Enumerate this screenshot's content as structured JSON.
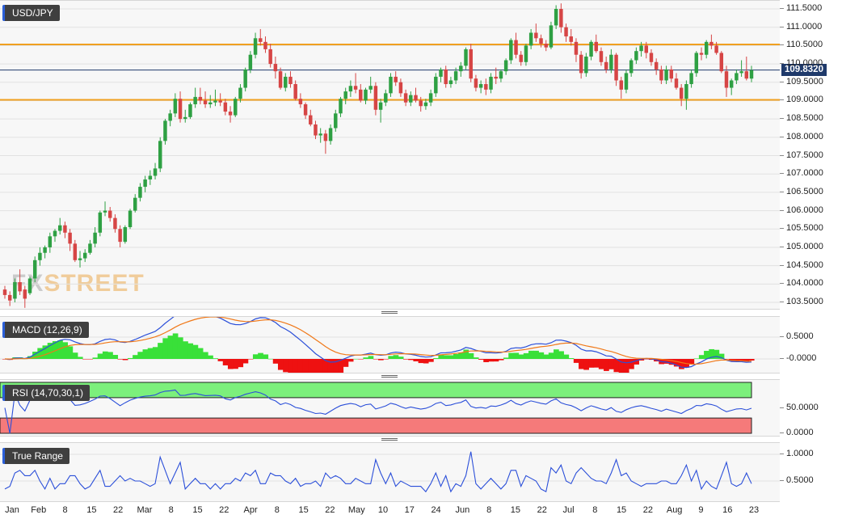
{
  "main_chart": {
    "symbol_label": "USD/JPY",
    "current_price_label": "109.8320",
    "price_ticks": [
      "111.5000",
      "111.0000",
      "110.5000",
      "110.0000",
      "109.5000",
      "109.0000",
      "108.5000",
      "108.0000",
      "107.5000",
      "107.0000",
      "106.5000",
      "106.0000",
      "105.5000",
      "105.0000",
      "104.5000",
      "104.0000",
      "103.5000"
    ],
    "watermark_fx": "FX",
    "watermark_street": "STREET",
    "colors": {
      "up": "#2ea043",
      "down": "#d64545",
      "hline": "#f0a020",
      "price_line": "#1f3a6b",
      "background": "#f7f7f7"
    }
  },
  "macd_panel": {
    "label": "MACD (12,26,9)",
    "ticks": [
      "0.5000",
      "-0.0000"
    ]
  },
  "rsi_panel": {
    "label": "RSI (14,70,30,1)",
    "ticks": [
      "50.0000",
      "0.0000"
    ]
  },
  "tr_panel": {
    "label": "True Range",
    "ticks": [
      "1.0000",
      "0.5000"
    ]
  },
  "date_labels": [
    "Jan",
    "Feb",
    "8",
    "15",
    "22",
    "Mar",
    "8",
    "15",
    "22",
    "Apr",
    "8",
    "15",
    "22",
    "May",
    "10",
    "17",
    "24",
    "Jun",
    "8",
    "15",
    "22",
    "Jul",
    "8",
    "15",
    "22",
    "Aug",
    "9",
    "16",
    "23"
  ],
  "chart_data": {
    "type": "candlestick",
    "symbol": "USD/JPY",
    "last_price": 109.832,
    "ylim": [
      103.3,
      111.65
    ],
    "horizontal_lines": [
      110.53,
      109.02
    ],
    "candles": [
      [
        103.85,
        103.95,
        103.6,
        103.7
      ],
      [
        103.7,
        103.8,
        103.4,
        103.55
      ],
      [
        103.6,
        104.15,
        103.5,
        104.05
      ],
      [
        104.05,
        104.4,
        103.7,
        103.8
      ],
      [
        103.85,
        103.95,
        103.35,
        103.6
      ],
      [
        103.75,
        104.2,
        103.7,
        104.15
      ],
      [
        104.15,
        104.75,
        104.05,
        104.65
      ],
      [
        104.65,
        105.0,
        104.5,
        104.85
      ],
      [
        104.85,
        105.05,
        104.7,
        105.0
      ],
      [
        105.0,
        105.4,
        104.85,
        105.3
      ],
      [
        105.3,
        105.5,
        105.15,
        105.45
      ],
      [
        105.45,
        105.8,
        105.35,
        105.6
      ],
      [
        105.6,
        105.7,
        105.25,
        105.4
      ],
      [
        105.4,
        105.5,
        104.9,
        105.1
      ],
      [
        105.1,
        105.2,
        104.6,
        104.65
      ],
      [
        104.65,
        104.9,
        104.45,
        104.7
      ],
      [
        104.7,
        104.95,
        104.6,
        104.85
      ],
      [
        104.85,
        105.2,
        104.8,
        105.1
      ],
      [
        105.1,
        105.55,
        105.0,
        105.4
      ],
      [
        105.4,
        106.0,
        105.3,
        105.95
      ],
      [
        105.95,
        106.25,
        105.85,
        106.0
      ],
      [
        106.0,
        106.1,
        105.7,
        105.8
      ],
      [
        105.8,
        105.9,
        105.4,
        105.5
      ],
      [
        105.5,
        105.6,
        105.0,
        105.15
      ],
      [
        105.15,
        105.6,
        105.1,
        105.55
      ],
      [
        105.55,
        106.05,
        105.5,
        106.0
      ],
      [
        106.0,
        106.45,
        105.95,
        106.35
      ],
      [
        106.35,
        106.75,
        106.25,
        106.65
      ],
      [
        106.65,
        106.95,
        106.5,
        106.85
      ],
      [
        106.85,
        107.1,
        106.7,
        106.95
      ],
      [
        106.95,
        107.3,
        106.85,
        107.15
      ],
      [
        107.15,
        108.0,
        107.05,
        107.9
      ],
      [
        107.9,
        108.5,
        107.8,
        108.45
      ],
      [
        108.45,
        108.75,
        108.3,
        108.65
      ],
      [
        108.65,
        109.2,
        108.55,
        109.05
      ],
      [
        109.05,
        109.25,
        108.4,
        108.5
      ],
      [
        108.5,
        108.75,
        108.4,
        108.55
      ],
      [
        108.55,
        108.95,
        108.5,
        108.9
      ],
      [
        108.9,
        109.35,
        108.8,
        109.1
      ],
      [
        109.1,
        109.35,
        108.9,
        109.0
      ],
      [
        109.0,
        109.25,
        108.8,
        108.9
      ],
      [
        108.9,
        109.15,
        108.8,
        108.95
      ],
      [
        108.95,
        109.3,
        108.85,
        109.0
      ],
      [
        109.0,
        109.2,
        108.85,
        108.95
      ],
      [
        108.95,
        109.05,
        108.6,
        108.7
      ],
      [
        108.7,
        108.85,
        108.4,
        108.6
      ],
      [
        108.6,
        109.1,
        108.55,
        109.05
      ],
      [
        109.05,
        109.45,
        108.95,
        109.35
      ],
      [
        109.35,
        109.9,
        109.25,
        109.85
      ],
      [
        109.85,
        110.35,
        109.75,
        110.25
      ],
      [
        110.25,
        110.85,
        110.15,
        110.7
      ],
      [
        110.7,
        110.95,
        110.5,
        110.6
      ],
      [
        110.6,
        110.75,
        110.3,
        110.4
      ],
      [
        110.4,
        110.55,
        109.9,
        110.0
      ],
      [
        110.0,
        110.2,
        109.6,
        109.8
      ],
      [
        109.8,
        109.9,
        109.3,
        109.35
      ],
      [
        109.35,
        109.75,
        109.25,
        109.65
      ],
      [
        109.65,
        109.8,
        109.35,
        109.45
      ],
      [
        109.45,
        109.55,
        109.0,
        109.05
      ],
      [
        109.05,
        109.2,
        108.8,
        108.9
      ],
      [
        108.9,
        108.95,
        108.5,
        108.6
      ],
      [
        108.6,
        108.75,
        108.3,
        108.35
      ],
      [
        108.35,
        108.45,
        107.95,
        108.05
      ],
      [
        108.05,
        108.25,
        107.85,
        108.1
      ],
      [
        108.1,
        108.2,
        107.55,
        107.9
      ],
      [
        107.9,
        108.35,
        107.8,
        108.25
      ],
      [
        108.25,
        108.75,
        108.15,
        108.65
      ],
      [
        108.65,
        109.1,
        108.55,
        109.05
      ],
      [
        109.05,
        109.35,
        108.9,
        109.25
      ],
      [
        109.25,
        109.55,
        109.1,
        109.4
      ],
      [
        109.4,
        109.75,
        109.2,
        109.3
      ],
      [
        109.3,
        109.45,
        108.95,
        109.0
      ],
      [
        109.0,
        109.35,
        108.9,
        109.3
      ],
      [
        109.3,
        109.65,
        109.2,
        109.4
      ],
      [
        109.4,
        109.5,
        108.6,
        108.75
      ],
      [
        108.75,
        109.05,
        108.4,
        108.95
      ],
      [
        108.95,
        109.3,
        108.85,
        109.2
      ],
      [
        109.2,
        109.75,
        109.1,
        109.65
      ],
      [
        109.65,
        109.8,
        109.4,
        109.5
      ],
      [
        109.5,
        109.6,
        109.1,
        109.2
      ],
      [
        109.2,
        109.3,
        108.85,
        108.95
      ],
      [
        108.95,
        109.25,
        108.85,
        109.15
      ],
      [
        109.15,
        109.35,
        108.95,
        109.0
      ],
      [
        109.0,
        109.1,
        108.7,
        108.85
      ],
      [
        108.85,
        109.05,
        108.75,
        108.95
      ],
      [
        108.95,
        109.3,
        108.85,
        109.2
      ],
      [
        109.2,
        109.75,
        109.1,
        109.65
      ],
      [
        109.65,
        109.9,
        109.5,
        109.85
      ],
      [
        109.85,
        109.95,
        109.35,
        109.45
      ],
      [
        109.45,
        109.65,
        109.35,
        109.55
      ],
      [
        109.55,
        109.9,
        109.45,
        109.8
      ],
      [
        109.8,
        110.05,
        109.65,
        109.95
      ],
      [
        109.95,
        110.45,
        109.85,
        110.4
      ],
      [
        110.4,
        110.55,
        109.5,
        109.6
      ],
      [
        109.6,
        109.7,
        109.25,
        109.35
      ],
      [
        109.35,
        109.55,
        109.2,
        109.45
      ],
      [
        109.45,
        109.6,
        109.15,
        109.3
      ],
      [
        109.3,
        109.75,
        109.2,
        109.65
      ],
      [
        109.65,
        109.9,
        109.45,
        109.6
      ],
      [
        109.6,
        109.85,
        109.5,
        109.8
      ],
      [
        109.8,
        110.15,
        109.7,
        110.1
      ],
      [
        110.1,
        110.7,
        110.0,
        110.65
      ],
      [
        110.65,
        110.85,
        110.15,
        110.25
      ],
      [
        110.25,
        110.35,
        109.95,
        110.05
      ],
      [
        110.05,
        110.55,
        109.95,
        110.5
      ],
      [
        110.5,
        110.95,
        110.4,
        110.85
      ],
      [
        110.85,
        111.1,
        110.6,
        110.7
      ],
      [
        110.7,
        110.8,
        110.45,
        110.55
      ],
      [
        110.55,
        110.65,
        110.35,
        110.45
      ],
      [
        110.45,
        111.15,
        110.4,
        111.05
      ],
      [
        111.05,
        111.6,
        110.95,
        111.5
      ],
      [
        111.5,
        111.65,
        110.85,
        111.0
      ],
      [
        111.0,
        111.1,
        110.6,
        110.75
      ],
      [
        110.75,
        110.95,
        110.5,
        110.6
      ],
      [
        110.6,
        110.7,
        110.05,
        110.25
      ],
      [
        110.25,
        110.35,
        109.6,
        109.75
      ],
      [
        109.75,
        110.3,
        109.65,
        110.2
      ],
      [
        110.2,
        110.65,
        110.1,
        110.6
      ],
      [
        110.6,
        110.8,
        110.3,
        110.35
      ],
      [
        110.35,
        110.45,
        109.95,
        110.05
      ],
      [
        110.05,
        110.2,
        109.75,
        109.85
      ],
      [
        109.85,
        110.4,
        109.75,
        110.25
      ],
      [
        110.25,
        110.3,
        109.4,
        109.55
      ],
      [
        109.55,
        109.65,
        109.05,
        109.3
      ],
      [
        109.3,
        109.85,
        109.2,
        109.75
      ],
      [
        109.75,
        110.15,
        109.65,
        110.1
      ],
      [
        110.1,
        110.45,
        110.0,
        110.35
      ],
      [
        110.35,
        110.6,
        110.2,
        110.5
      ],
      [
        110.5,
        110.6,
        110.15,
        110.3
      ],
      [
        110.3,
        110.4,
        109.95,
        110.05
      ],
      [
        110.05,
        110.15,
        109.7,
        109.85
      ],
      [
        109.85,
        109.95,
        109.45,
        109.55
      ],
      [
        109.55,
        109.95,
        109.45,
        109.85
      ],
      [
        109.85,
        109.95,
        109.5,
        109.6
      ],
      [
        109.6,
        109.75,
        109.3,
        109.35
      ],
      [
        109.35,
        109.45,
        108.85,
        109.05
      ],
      [
        109.05,
        109.55,
        108.75,
        109.45
      ],
      [
        109.45,
        109.85,
        109.35,
        109.75
      ],
      [
        109.75,
        110.35,
        109.65,
        110.3
      ],
      [
        110.3,
        110.45,
        110.1,
        110.25
      ],
      [
        110.25,
        110.65,
        110.15,
        110.6
      ],
      [
        110.6,
        110.8,
        110.4,
        110.5
      ],
      [
        110.5,
        110.6,
        110.25,
        110.3
      ],
      [
        110.3,
        110.35,
        109.75,
        109.8
      ],
      [
        109.8,
        109.95,
        109.1,
        109.35
      ],
      [
        109.35,
        109.6,
        109.15,
        109.55
      ],
      [
        109.55,
        109.85,
        109.45,
        109.75
      ],
      [
        109.75,
        110.1,
        109.65,
        109.8
      ],
      [
        109.8,
        110.2,
        109.55,
        109.6
      ],
      [
        109.6,
        109.95,
        109.5,
        109.83
      ]
    ]
  }
}
